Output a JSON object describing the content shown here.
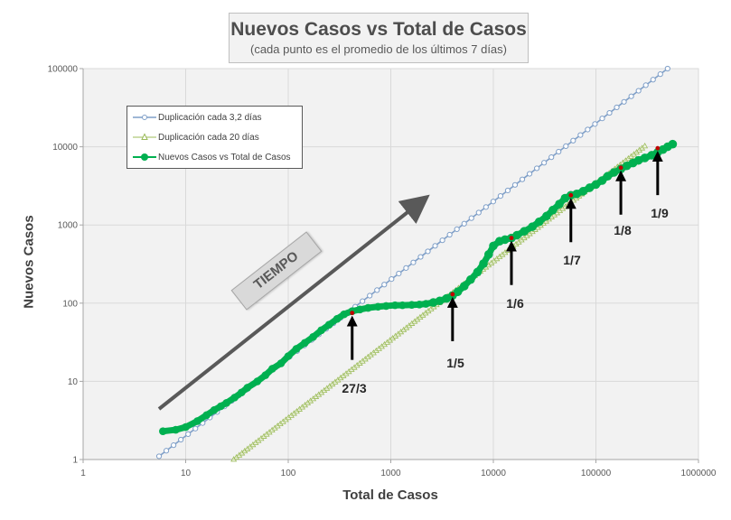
{
  "chart_data": {
    "type": "scatter",
    "xscale": "log",
    "yscale": "log",
    "title": "Nuevos Casos vs Total de Casos",
    "subtitle": "(cada punto  es el promedio  de los últimos  7 días)",
    "xlabel": "Total de Casos",
    "ylabel": "Nuevos Casos",
    "xlim": [
      1,
      1000000
    ],
    "ylim": [
      1,
      100000
    ],
    "xticks": [
      1,
      10,
      100,
      1000,
      10000,
      100000,
      1000000
    ],
    "xtick_labels": [
      "1",
      "10",
      "100",
      "1000",
      "10000",
      "100000",
      "1000000"
    ],
    "yticks": [
      1,
      10,
      100,
      1000,
      10000,
      100000
    ],
    "ytick_labels": [
      "1",
      "10",
      "100",
      "1000",
      "10000",
      "100000"
    ],
    "grid": true,
    "legend_position": "upper-left",
    "series": [
      {
        "name": "Duplicación cada 3,2 días",
        "color": "#7f9fc8",
        "marker": "circle",
        "reference_rate": 0.2,
        "x_range": [
          5.5,
          500000
        ]
      },
      {
        "name": "Duplicación cada 20 días",
        "color": "#9bbb59",
        "marker": "triangle",
        "reference_rate": 0.034,
        "x_range": [
          20,
          300000
        ]
      },
      {
        "name": "Nuevos Casos vs Total de Casos",
        "color": "#00b050",
        "marker": "circle",
        "x": [
          6,
          8,
          10,
          13,
          16,
          19,
          22,
          25,
          30,
          35,
          40,
          50,
          60,
          70,
          85,
          100,
          120,
          145,
          175,
          210,
          250,
          300,
          350,
          420,
          500,
          600,
          750,
          900,
          1100,
          1300,
          1600,
          1900,
          2200,
          2600,
          3000,
          3500,
          4000,
          4500,
          5200,
          6000,
          7000,
          8000,
          9000,
          10000,
          11500,
          13000,
          15000,
          17000,
          20000,
          24000,
          28000,
          33000,
          38000,
          44000,
          50000,
          57000,
          65000,
          75000,
          87000,
          100000,
          115000,
          130000,
          150000,
          175000,
          200000,
          230000,
          260000,
          300000,
          350000,
          400000,
          450000,
          500000,
          560000
        ],
        "y": [
          2.3,
          2.4,
          2.6,
          3.1,
          3.7,
          4.3,
          4.8,
          5.3,
          6.2,
          7.2,
          8.3,
          10,
          12,
          14.5,
          17,
          21,
          26,
          31,
          37,
          45,
          53,
          63,
          72,
          79,
          83,
          87,
          90,
          92,
          94,
          94,
          95,
          96,
          98,
          102,
          107,
          115,
          125,
          140,
          165,
          200,
          250,
          320,
          420,
          540,
          620,
          650,
          680,
          740,
          830,
          950,
          1100,
          1300,
          1550,
          1850,
          2200,
          2400,
          2500,
          2700,
          3000,
          3300,
          3700,
          4200,
          4700,
          5200,
          5700,
          6200,
          6700,
          7200,
          7800,
          8500,
          9200,
          10000,
          10800
        ]
      }
    ],
    "annotations": [
      {
        "label": "27/3",
        "x": 420,
        "y": 75
      },
      {
        "label": "1/5",
        "x": 4000,
        "y": 130
      },
      {
        "label": "1/6",
        "x": 15000,
        "y": 680
      },
      {
        "label": "1/7",
        "x": 57000,
        "y": 2400
      },
      {
        "label": "1/8",
        "x": 175000,
        "y": 5400
      },
      {
        "label": "1/9",
        "x": 400000,
        "y": 9600
      }
    ],
    "callout": "TIEMPO"
  }
}
